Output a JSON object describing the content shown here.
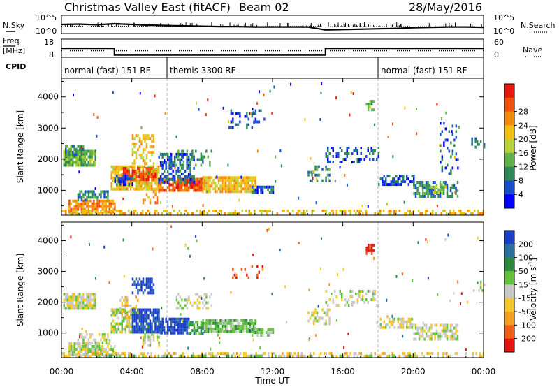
{
  "header": {
    "title": "Christmas Valley East (fitACF)",
    "beam": "Beam 02",
    "date": "28/May/2016"
  },
  "colors": {
    "ink": "#000000",
    "gridline": "#b4b4b4"
  },
  "chart_data": [
    {
      "type": "line",
      "name": "noise-panel",
      "left_label": "N.Sky",
      "right_label": "N.Search",
      "left_ticks": [
        "10^5",
        "10^0"
      ],
      "right_ticks": [
        "10^5",
        "10^0"
      ],
      "x": [
        0,
        1,
        2,
        3,
        4,
        5,
        6,
        7,
        8,
        9,
        10,
        11,
        12,
        13,
        14,
        15,
        16,
        17,
        18,
        19,
        20,
        21,
        22,
        23,
        24
      ],
      "series": [
        {
          "values": [
            2.5,
            2.6,
            2.4,
            2.7,
            2.5,
            2.3,
            2.2,
            2.1,
            2.0,
            1.9,
            1.9,
            1.8,
            1.8,
            1.8,
            1.8,
            1.0,
            1.1,
            1.2,
            1.3,
            1.4,
            1.6,
            1.7,
            1.8,
            1.8,
            1.7
          ]
        },
        {
          "values": [
            2.0,
            2.0,
            2.0,
            2.0,
            2.0,
            2.0,
            2.0,
            2.0,
            2.0,
            2.0,
            2.0,
            2.0,
            2.0,
            2.0,
            2.0,
            1.9,
            1.9,
            1.9,
            1.9,
            1.9,
            1.9,
            1.9,
            1.9,
            1.9,
            1.9
          ]
        }
      ]
    },
    {
      "type": "line",
      "name": "freq-panel",
      "left_label": "Freq.",
      "left_unit": "[MHz]",
      "right_label": "Nave",
      "left_ticks": [
        "18",
        "8"
      ],
      "right_ticks": [
        "60",
        "0"
      ],
      "freq": [
        {
          "t": 0,
          "v": 12.8
        },
        {
          "t": 3,
          "v": 12.8
        },
        {
          "t": 3,
          "v": 9.2
        },
        {
          "t": 15,
          "v": 9.2
        },
        {
          "t": 15,
          "v": 12.8
        },
        {
          "t": 24,
          "v": 12.8
        }
      ],
      "nave": [
        {
          "t": 0,
          "v": 22
        },
        {
          "t": 24,
          "v": 22
        }
      ]
    },
    {
      "type": "table",
      "name": "cpid-panel",
      "label": "CPID",
      "segments": [
        {
          "start": 0,
          "end": 6,
          "text": "normal (fast) 151 RF"
        },
        {
          "start": 6,
          "end": 18,
          "text": "themis 3300 RF"
        },
        {
          "start": 18,
          "end": 24,
          "text": "normal (fast) 151 RF"
        }
      ]
    },
    {
      "type": "heatmap",
      "name": "power-panel",
      "ylabel": "Slant Range [km]",
      "xlabel": "",
      "xlim": [
        0,
        24
      ],
      "ylim": [
        200,
        4600
      ],
      "yticks": [
        "1000",
        "2000",
        "3000",
        "4000"
      ],
      "colorbar": {
        "label": "Power [dB]",
        "ticks": [
          "4",
          "8",
          "12",
          "16",
          "20",
          "24",
          "28"
        ],
        "colors": [
          "#0000ff",
          "#1a4fcc",
          "#2e8b57",
          "#62b34a",
          "#b8d238",
          "#f4c010",
          "#f48a0e",
          "#f0520c",
          "#e8180c"
        ]
      },
      "regions": [
        {
          "t0": 0.1,
          "t1": 1.9,
          "r0": 1800,
          "r1": 2300,
          "c": 3,
          "d": 0.85
        },
        {
          "t0": 0.2,
          "t1": 1.2,
          "r0": 2100,
          "r1": 2450,
          "c": 2,
          "d": 0.6
        },
        {
          "t0": 0.4,
          "t1": 3.0,
          "r0": 300,
          "r1": 700,
          "c": 6,
          "d": 0.8
        },
        {
          "t0": 0.9,
          "t1": 2.6,
          "r0": 650,
          "r1": 1000,
          "c": 2,
          "d": 0.5
        },
        {
          "t0": 2.8,
          "t1": 5.5,
          "r0": 1000,
          "r1": 1800,
          "c": 5,
          "d": 0.85
        },
        {
          "t0": 3.4,
          "t1": 5.3,
          "r0": 1350,
          "r1": 1750,
          "c": 7,
          "d": 0.75
        },
        {
          "t0": 4.0,
          "t1": 5.2,
          "r0": 1900,
          "r1": 2800,
          "c": 5,
          "d": 0.4
        },
        {
          "t0": 3.0,
          "t1": 4.0,
          "r0": 1200,
          "r1": 1500,
          "c": 1,
          "d": 0.6
        },
        {
          "t0": 4.6,
          "t1": 5.5,
          "r0": 600,
          "r1": 1000,
          "c": 6,
          "d": 0.5
        },
        {
          "t0": 5.5,
          "t1": 8.0,
          "r0": 1000,
          "r1": 1400,
          "c": 7,
          "d": 0.8
        },
        {
          "t0": 5.5,
          "t1": 7.5,
          "r0": 1300,
          "r1": 2200,
          "c": 1,
          "d": 0.55
        },
        {
          "t0": 6.5,
          "t1": 8.5,
          "r0": 1800,
          "r1": 2300,
          "c": 2,
          "d": 0.35
        },
        {
          "t0": 8.0,
          "t1": 11.0,
          "r0": 1000,
          "r1": 1450,
          "c": 5,
          "d": 0.85
        },
        {
          "t0": 10.8,
          "t1": 12.0,
          "r0": 900,
          "r1": 1150,
          "c": 1,
          "d": 0.7
        },
        {
          "t0": 9.5,
          "t1": 11.5,
          "r0": 3000,
          "r1": 3600,
          "c": 1,
          "d": 0.2
        },
        {
          "t0": 14.0,
          "t1": 15.2,
          "r0": 1300,
          "r1": 1800,
          "c": 2,
          "d": 0.4
        },
        {
          "t0": 15.0,
          "t1": 18.0,
          "r0": 1900,
          "r1": 2400,
          "c": 1,
          "d": 0.3
        },
        {
          "t0": 17.3,
          "t1": 17.7,
          "r0": 3600,
          "r1": 3900,
          "c": 3,
          "d": 0.6
        },
        {
          "t0": 18.0,
          "t1": 20.0,
          "r0": 1200,
          "r1": 1500,
          "c": 1,
          "d": 0.55
        },
        {
          "t0": 20.0,
          "t1": 22.5,
          "r0": 800,
          "r1": 1300,
          "c": 2,
          "d": 0.65
        },
        {
          "t0": 21.0,
          "t1": 22.0,
          "r0": 900,
          "r1": 1150,
          "c": 4,
          "d": 0.5
        },
        {
          "t0": 21.5,
          "t1": 22.5,
          "r0": 1500,
          "r1": 3200,
          "c": 1,
          "d": 0.15
        },
        {
          "t0": 23.3,
          "t1": 24.0,
          "r0": 2400,
          "r1": 2700,
          "c": 2,
          "d": 0.4
        },
        {
          "t0": 0.0,
          "t1": 24.0,
          "r0": 220,
          "r1": 380,
          "c": 5,
          "d": 0.45
        }
      ]
    },
    {
      "type": "heatmap",
      "name": "velocity-panel",
      "ylabel": "Slant Range [km]",
      "xlabel": "Time UT",
      "xlim": [
        0,
        24
      ],
      "ylim": [
        200,
        4600
      ],
      "xticks": [
        "00:00",
        "04:00",
        "08:00",
        "12:00",
        "16:00",
        "20:00",
        "00:00"
      ],
      "yticks": [
        "1000",
        "2000",
        "3000",
        "4000"
      ],
      "colorbar": {
        "label": "Velocity [m s",
        "unit_power": "-1",
        "unit_close": "]",
        "ticks": [
          "200",
          "100",
          "50",
          "15",
          "-15",
          "-50",
          "-100",
          "-200"
        ],
        "colors": [
          "#1a3fc8",
          "#2a70a0",
          "#2c8c3c",
          "#64c23c",
          "#c8c8c8",
          "#f4c828",
          "#f4a020",
          "#f06018",
          "#e81410"
        ]
      },
      "regions": [
        {
          "t0": 0.1,
          "t1": 1.9,
          "r0": 1800,
          "r1": 2300,
          "c": 4,
          "d": 0.85
        },
        {
          "t0": 0.4,
          "t1": 3.0,
          "r0": 300,
          "r1": 700,
          "c": 4,
          "d": 0.8
        },
        {
          "t0": 0.9,
          "t1": 2.6,
          "r0": 650,
          "r1": 1000,
          "c": 4,
          "d": 0.5
        },
        {
          "t0": 2.8,
          "t1": 4.0,
          "r0": 1000,
          "r1": 1800,
          "c": 4,
          "d": 0.7
        },
        {
          "t0": 3.3,
          "t1": 4.3,
          "r0": 1500,
          "r1": 2200,
          "c": 5,
          "d": 0.4
        },
        {
          "t0": 4.0,
          "t1": 5.5,
          "r0": 1000,
          "r1": 1800,
          "c": 0,
          "d": 0.85
        },
        {
          "t0": 4.0,
          "t1": 5.2,
          "r0": 2300,
          "r1": 2800,
          "c": 0,
          "d": 0.5
        },
        {
          "t0": 4.6,
          "t1": 5.5,
          "r0": 600,
          "r1": 1000,
          "c": 4,
          "d": 0.5
        },
        {
          "t0": 5.5,
          "t1": 7.2,
          "r0": 1000,
          "r1": 1500,
          "c": 0,
          "d": 0.8
        },
        {
          "t0": 6.5,
          "t1": 8.5,
          "r0": 1800,
          "r1": 2300,
          "c": 4,
          "d": 0.35
        },
        {
          "t0": 7.2,
          "t1": 8.0,
          "r0": 1000,
          "r1": 1400,
          "c": 2,
          "d": 0.7
        },
        {
          "t0": 8.0,
          "t1": 11.0,
          "r0": 1000,
          "r1": 1450,
          "c": 3,
          "d": 0.85
        },
        {
          "t0": 10.8,
          "t1": 12.0,
          "r0": 900,
          "r1": 1150,
          "c": 3,
          "d": 0.7
        },
        {
          "t0": 9.5,
          "t1": 11.5,
          "r0": 2800,
          "r1": 3200,
          "c": 7,
          "d": 0.15
        },
        {
          "t0": 14.0,
          "t1": 15.2,
          "r0": 1300,
          "r1": 1800,
          "c": 4,
          "d": 0.4
        },
        {
          "t0": 15.0,
          "t1": 18.0,
          "r0": 1900,
          "r1": 2400,
          "c": 4,
          "d": 0.3
        },
        {
          "t0": 17.3,
          "t1": 17.7,
          "r0": 3600,
          "r1": 3900,
          "c": 8,
          "d": 0.6
        },
        {
          "t0": 18.0,
          "t1": 20.0,
          "r0": 1200,
          "r1": 1500,
          "c": 4,
          "d": 0.55
        },
        {
          "t0": 20.0,
          "t1": 22.5,
          "r0": 800,
          "r1": 1300,
          "c": 4,
          "d": 0.65
        },
        {
          "t0": 23.3,
          "t1": 24.0,
          "r0": 2400,
          "r1": 2700,
          "c": 4,
          "d": 0.4
        },
        {
          "t0": 0.0,
          "t1": 24.0,
          "r0": 220,
          "r1": 380,
          "c": 5,
          "d": 0.4
        },
        {
          "t0": 1.0,
          "t1": 22.0,
          "r0": 220,
          "r1": 300,
          "c": 3,
          "d": 0.3
        }
      ]
    }
  ]
}
